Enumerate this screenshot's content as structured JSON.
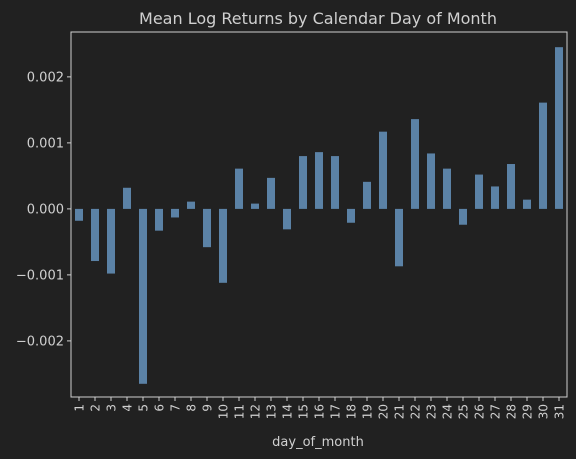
{
  "chart_data": {
    "type": "bar",
    "title": "Mean Log Returns by Calendar Day of Month",
    "xlabel": "day_of_month",
    "ylabel": "",
    "categories": [
      "1",
      "2",
      "3",
      "4",
      "5",
      "6",
      "7",
      "8",
      "9",
      "10",
      "11",
      "12",
      "13",
      "14",
      "15",
      "16",
      "17",
      "18",
      "19",
      "20",
      "21",
      "22",
      "23",
      "24",
      "25",
      "26",
      "27",
      "28",
      "29",
      "30",
      "31"
    ],
    "values": [
      -0.00018,
      -0.00079,
      -0.00098,
      0.00032,
      -0.00265,
      -0.00033,
      -0.00013,
      0.00011,
      -0.00058,
      -0.00112,
      0.00061,
      8e-05,
      0.00047,
      -0.00031,
      0.0008,
      0.00086,
      0.0008,
      -0.00021,
      0.00041,
      0.00117,
      -0.00087,
      0.00136,
      0.00084,
      0.00061,
      -0.00024,
      0.00052,
      0.00034,
      0.00068,
      0.00014,
      0.00161,
      0.00245
    ],
    "yticks": [
      -0.002,
      -0.001,
      0.0,
      0.001,
      0.002
    ],
    "ytick_labels": [
      "−0.002",
      "−0.001",
      "0.000",
      "0.001",
      "0.002"
    ],
    "ylim": [
      -0.00285,
      0.00268
    ],
    "grid": false,
    "legend": "none",
    "bar_color": "#5b82a6",
    "axis_color": "#d0d0d0",
    "background_color": "#212121"
  }
}
